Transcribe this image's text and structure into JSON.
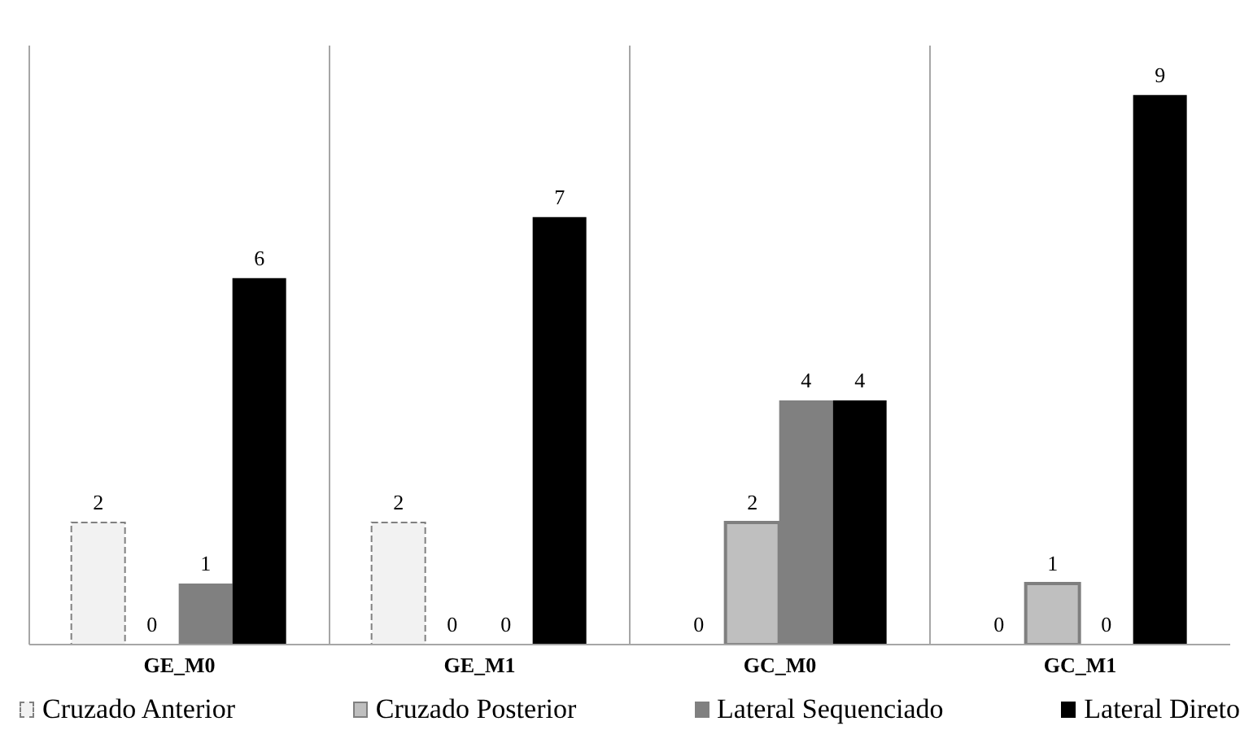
{
  "chart_data": {
    "type": "bar",
    "categories": [
      "GE_M0",
      "GE_M1",
      "GC_M0",
      "GC_M1"
    ],
    "series": [
      {
        "name": "Cruzado Anterior",
        "color": "#f2f2f2",
        "values": [
          2,
          2,
          0,
          0
        ]
      },
      {
        "name": "Cruzado Posterior",
        "color": "#bfbfbf",
        "values": [
          0,
          0,
          2,
          1
        ]
      },
      {
        "name": "Lateral Sequenciado",
        "color": "#808080",
        "values": [
          1,
          0,
          4,
          0
        ]
      },
      {
        "name": "Lateral Direto",
        "color": "#000000",
        "values": [
          6,
          7,
          4,
          9
        ]
      }
    ],
    "data_labels": true,
    "grid": "x",
    "legend": "bottom"
  }
}
